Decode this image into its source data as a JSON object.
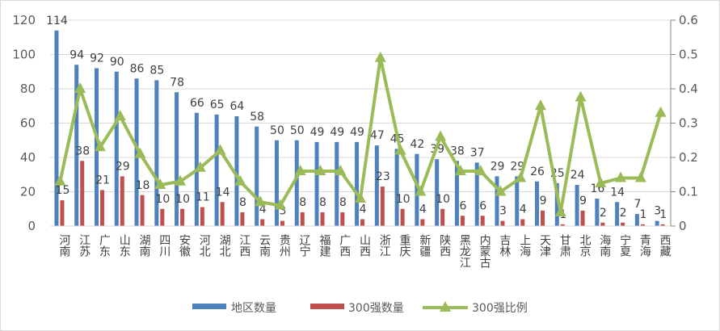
{
  "chart_data": {
    "type": "bar",
    "title": "",
    "categories": [
      "河南",
      "江苏",
      "广东",
      "山东",
      "湖南",
      "四川",
      "安徽",
      "河北",
      "湖北",
      "江西",
      "云南",
      "贵州",
      "辽宁",
      "福建",
      "广西",
      "山西",
      "浙江",
      "重庆",
      "新疆",
      "陕西",
      "黑龙江",
      "内蒙古",
      "吉林",
      "上海",
      "天津",
      "甘肃",
      "北京",
      "海南",
      "宁夏",
      "青海",
      "西藏"
    ],
    "series": [
      {
        "name": "地区数量",
        "type": "bar",
        "axis": "left",
        "color": "#4F81BD",
        "values": [
          114,
          94,
          92,
          90,
          86,
          85,
          78,
          66,
          65,
          64,
          58,
          50,
          50,
          49,
          49,
          49,
          47,
          45,
          42,
          39,
          38,
          37,
          29,
          29,
          26,
          25,
          24,
          16,
          14,
          7,
          3
        ]
      },
      {
        "name": "300强数量",
        "type": "bar",
        "axis": "left",
        "color": "#C0504D",
        "values": [
          15,
          38,
          21,
          29,
          18,
          10,
          10,
          11,
          14,
          8,
          4,
          3,
          8,
          8,
          8,
          4,
          23,
          10,
          4,
          10,
          6,
          6,
          3,
          4,
          9,
          1,
          9,
          2,
          2,
          1,
          1
        ]
      },
      {
        "name": "300强比例",
        "type": "line",
        "axis": "right",
        "color": "#9BBB59",
        "values": [
          0.13,
          0.4,
          0.23,
          0.32,
          0.21,
          0.12,
          0.13,
          0.17,
          0.22,
          0.13,
          0.07,
          0.06,
          0.16,
          0.16,
          0.16,
          0.08,
          0.49,
          0.22,
          0.1,
          0.26,
          0.16,
          0.16,
          0.1,
          0.14,
          0.35,
          0.04,
          0.375,
          0.125,
          0.14,
          0.14,
          0.33
        ]
      }
    ],
    "ylim": [
      0,
      120
    ],
    "yticks": [
      "0",
      "20",
      "40",
      "60",
      "80",
      "100",
      "120"
    ],
    "y2lim": [
      0,
      0.6
    ],
    "y2ticks": [
      "0",
      "0.1",
      "0.2",
      "0.3",
      "0.4",
      "0.5",
      "0.6"
    ],
    "grid": true,
    "legend": "bottom"
  }
}
